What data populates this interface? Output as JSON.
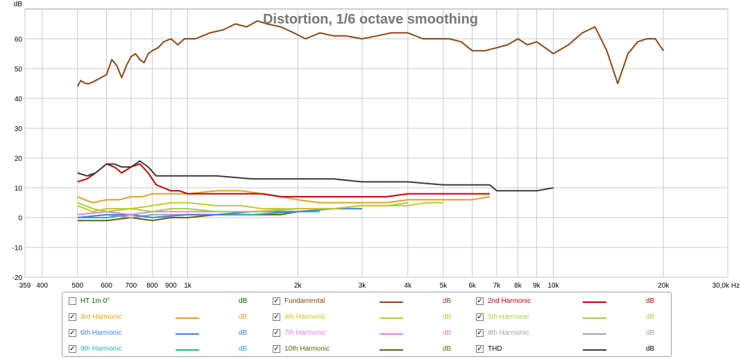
{
  "chart_data": {
    "type": "line",
    "title": "Distortion, 1/6 octave smoothing",
    "ylabel": "dB",
    "xlabel": "Hz",
    "xscale": "log",
    "xlim": [
      359,
      30000
    ],
    "ylim": [
      -20,
      70
    ],
    "x_ticks": [
      359,
      400,
      500,
      600,
      700,
      800,
      900,
      1000,
      2000,
      3000,
      4000,
      5000,
      6000,
      7000,
      8000,
      9000,
      10000,
      20000,
      30000
    ],
    "x_tick_labels": [
      "359",
      "400",
      "500",
      "600",
      "700",
      "800",
      "900",
      "1k",
      "2k",
      "3k",
      "4k",
      "5k",
      "6k",
      "7k",
      "8k",
      "9k",
      "10k",
      "20k",
      "30,0k Hz"
    ],
    "y_ticks": [
      -20,
      -10,
      0,
      10,
      20,
      30,
      40,
      50,
      60
    ],
    "y_tick_labels": [
      "-20",
      "-10",
      "0",
      "10",
      "20",
      "30",
      "40",
      "50",
      "60"
    ],
    "grid": true,
    "series": [
      {
        "name": "Fundamental",
        "color": "#8b4513",
        "x": [
          500,
          510,
          525,
          540,
          560,
          580,
          600,
          620,
          640,
          660,
          680,
          700,
          720,
          740,
          760,
          780,
          800,
          830,
          860,
          900,
          940,
          980,
          1050,
          1150,
          1250,
          1350,
          1450,
          1550,
          1650,
          1800,
          1950,
          2100,
          2300,
          2500,
          2700,
          3000,
          3300,
          3600,
          4000,
          4400,
          4800,
          5200,
          5600,
          6000,
          6500,
          7000,
          7500,
          8000,
          8500,
          9000,
          9500,
          10000,
          11000,
          12000,
          13000,
          14000,
          15000,
          16000,
          17000,
          18000,
          19000,
          20000
        ],
        "y": [
          44,
          46,
          45,
          45,
          46,
          47,
          48,
          53,
          51,
          47,
          51,
          54,
          55,
          53,
          52,
          55,
          56,
          57,
          59,
          60,
          58,
          60,
          60,
          62,
          63,
          65,
          64,
          66,
          65,
          64,
          62,
          60,
          62,
          61,
          61,
          60,
          61,
          62,
          62,
          60,
          60,
          60,
          59,
          56,
          56,
          57,
          58,
          60,
          58,
          59,
          57,
          55,
          58,
          62,
          64,
          56,
          45,
          55,
          59,
          60,
          60,
          56
        ]
      },
      {
        "name": "2nd Harmonic",
        "color": "#c00000",
        "x": [
          500,
          530,
          560,
          600,
          630,
          660,
          700,
          740,
          780,
          820,
          860,
          900,
          950,
          1000,
          1100,
          1200,
          1400,
          1600,
          1800,
          2000,
          2300,
          2600,
          3000,
          3500,
          4000,
          4500,
          5000,
          5500,
          6000,
          6700
        ],
        "y": [
          12,
          13,
          15,
          18,
          17,
          15,
          17,
          18,
          15,
          11,
          10,
          9,
          9,
          8,
          8,
          8,
          8,
          8,
          7,
          7,
          7,
          7,
          7,
          7,
          8,
          8,
          8,
          8,
          8,
          8
        ]
      },
      {
        "name": "THD",
        "color": "#3a3a3a",
        "x": [
          500,
          530,
          560,
          600,
          630,
          660,
          700,
          740,
          780,
          820,
          860,
          900,
          1000,
          1200,
          1500,
          2000,
          2500,
          3000,
          3500,
          4000,
          5000,
          6000,
          6700,
          7000,
          8000,
          9000,
          10000
        ],
        "y": [
          15,
          14,
          15,
          18,
          18,
          17,
          17,
          19,
          17,
          14,
          14,
          14,
          14,
          14,
          13,
          13,
          13,
          12,
          12,
          12,
          11,
          11,
          11,
          9,
          9,
          9,
          10
        ]
      },
      {
        "name": "3rd Harmonic",
        "color": "#e0a020",
        "x": [
          500,
          550,
          600,
          650,
          700,
          750,
          800,
          900,
          1000,
          1200,
          1400,
          1600,
          1800,
          2000,
          2300,
          2600,
          3000,
          3500,
          4000,
          5000,
          6000,
          6700
        ],
        "y": [
          7,
          5,
          6,
          6,
          7,
          7,
          8,
          8,
          8,
          9,
          9,
          8,
          7,
          6,
          5,
          5,
          5,
          5,
          6,
          6,
          6,
          7
        ]
      },
      {
        "name": "4th Harmonic",
        "color": "#c8c820",
        "x": [
          500,
          550,
          600,
          700,
          800,
          900,
          1000,
          1200,
          1400,
          1600,
          2000,
          2500,
          3000,
          3500,
          4000,
          4500,
          5000
        ],
        "y": [
          4,
          2,
          3,
          3,
          4,
          5,
          5,
          4,
          4,
          3,
          3,
          3,
          4,
          4,
          4,
          5,
          5
        ]
      },
      {
        "name": "5th Harmonic",
        "color": "#a0d040",
        "x": [
          500,
          550,
          600,
          700,
          800,
          900,
          1000,
          1200,
          1400,
          1600,
          2000,
          2500,
          3000,
          3500,
          4000
        ],
        "y": [
          5,
          3,
          2,
          3,
          2,
          3,
          3,
          2,
          2,
          2,
          3,
          3,
          4,
          4,
          5
        ]
      },
      {
        "name": "6th Harmonic",
        "color": "#4080e0",
        "x": [
          500,
          600,
          700,
          800,
          1000,
          1200,
          1500,
          2000,
          2500,
          3000
        ],
        "y": [
          0,
          1,
          1,
          0,
          1,
          1,
          2,
          2,
          3,
          3
        ]
      },
      {
        "name": "7th Harmonic",
        "color": "#e080e0",
        "x": [
          500,
          600,
          700,
          800,
          1000,
          1200,
          1500,
          2000,
          2500,
          3000
        ],
        "y": [
          1,
          2,
          1,
          2,
          2,
          2,
          2,
          3,
          3,
          4
        ]
      },
      {
        "name": "8th Harmonic",
        "color": "#a0a0a0",
        "x": [
          500,
          600,
          700,
          800,
          1000,
          1200,
          1500,
          2000,
          2500
        ],
        "y": [
          0,
          1,
          0,
          1,
          1,
          1,
          2,
          2,
          3
        ]
      },
      {
        "name": "9th Harmonic",
        "color": "#20b0b0",
        "x": [
          500,
          600,
          700,
          800,
          1000,
          1200,
          1500,
          2000,
          2300
        ],
        "y": [
          0,
          0,
          1,
          0,
          1,
          1,
          1,
          2,
          2
        ]
      },
      {
        "name": "10th Harmonic",
        "color": "#606010",
        "x": [
          500,
          600,
          700,
          800,
          900,
          1000,
          1200,
          1500,
          1800,
          2000
        ],
        "y": [
          -1,
          -1,
          0,
          -1,
          0,
          0,
          1,
          1,
          1,
          2
        ]
      }
    ]
  },
  "legend": {
    "items": [
      {
        "label": "HT 1m 0°",
        "checked": false,
        "color": "#006000",
        "line_color": "",
        "unit": "dB"
      },
      {
        "label": "Fundamental",
        "checked": true,
        "color": "#8b4513",
        "line_color": "#8b4513",
        "unit": "dB"
      },
      {
        "label": "2nd Harmonic",
        "checked": true,
        "color": "#c00000",
        "line_color": "#c00000",
        "unit": "dB"
      },
      {
        "label": "3rd Harmonic",
        "checked": true,
        "color": "#e0a020",
        "line_color": "#e0a020",
        "unit": "dB"
      },
      {
        "label": "4th Harmonic",
        "checked": true,
        "color": "#c8c820",
        "line_color": "#c8c820",
        "unit": "dB"
      },
      {
        "label": "5th Harmonic",
        "checked": true,
        "color": "#a0d040",
        "line_color": "#a0d040",
        "unit": "dB"
      },
      {
        "label": "6th Harmonic",
        "checked": true,
        "color": "#4080e0",
        "line_color": "#4080e0",
        "unit": "dB"
      },
      {
        "label": "7th Harmonic",
        "checked": true,
        "color": "#e080e0",
        "line_color": "#e080e0",
        "unit": "dB"
      },
      {
        "label": "8th Harmonic",
        "checked": true,
        "color": "#a0a0a0",
        "line_color": "#a0a0a0",
        "unit": "dB"
      },
      {
        "label": "9th Harmonic",
        "checked": true,
        "color": "#20b0b0",
        "line_color": "#20b0b0",
        "unit": "dB"
      },
      {
        "label": "10th Harmonic",
        "checked": true,
        "color": "#606010",
        "line_color": "#606010",
        "unit": "dB"
      },
      {
        "label": "THD",
        "checked": true,
        "color": "#000000",
        "line_color": "#3a3a3a",
        "unit": "dB"
      }
    ]
  }
}
